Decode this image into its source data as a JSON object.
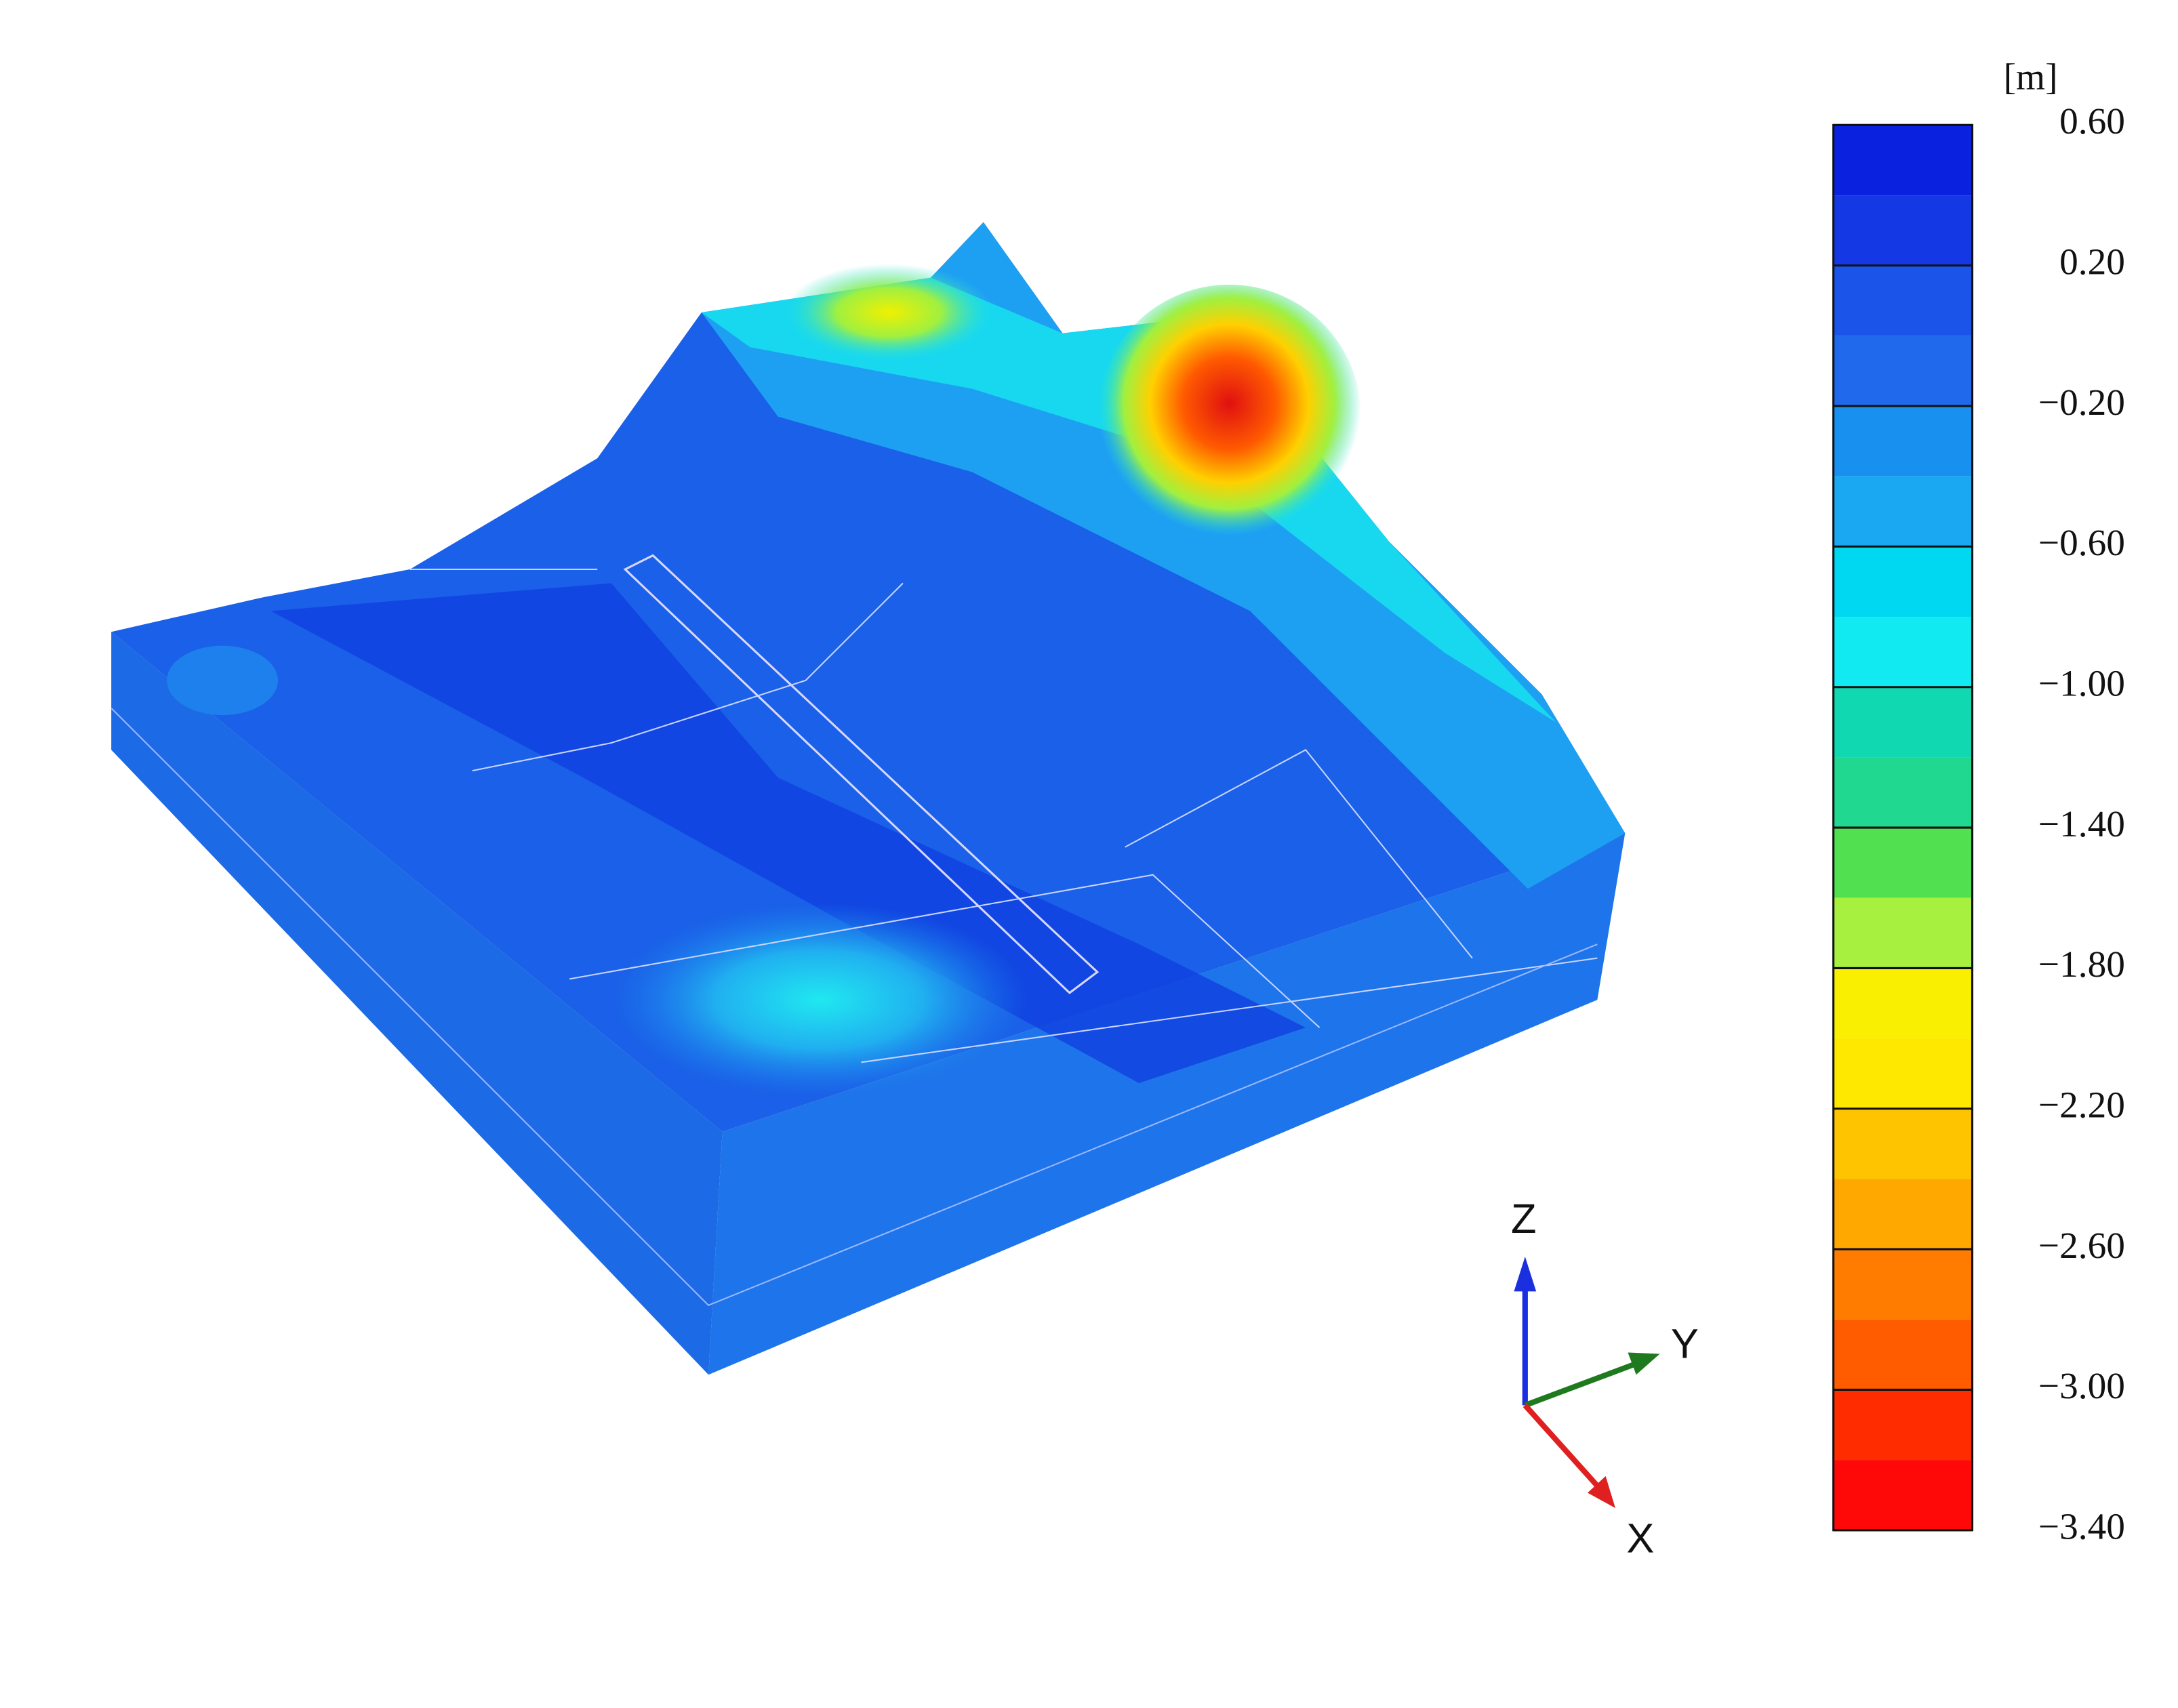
{
  "colorbar": {
    "unit": "[m]",
    "ticks": [
      "0.60",
      "0.20",
      "−0.20",
      "−0.60",
      "−1.00",
      "−1.40",
      "−1.80",
      "−2.20",
      "−2.60",
      "−3.00",
      "−3.40"
    ]
  },
  "axes": {
    "z": "Z",
    "y": "Y",
    "x": "X"
  }
}
